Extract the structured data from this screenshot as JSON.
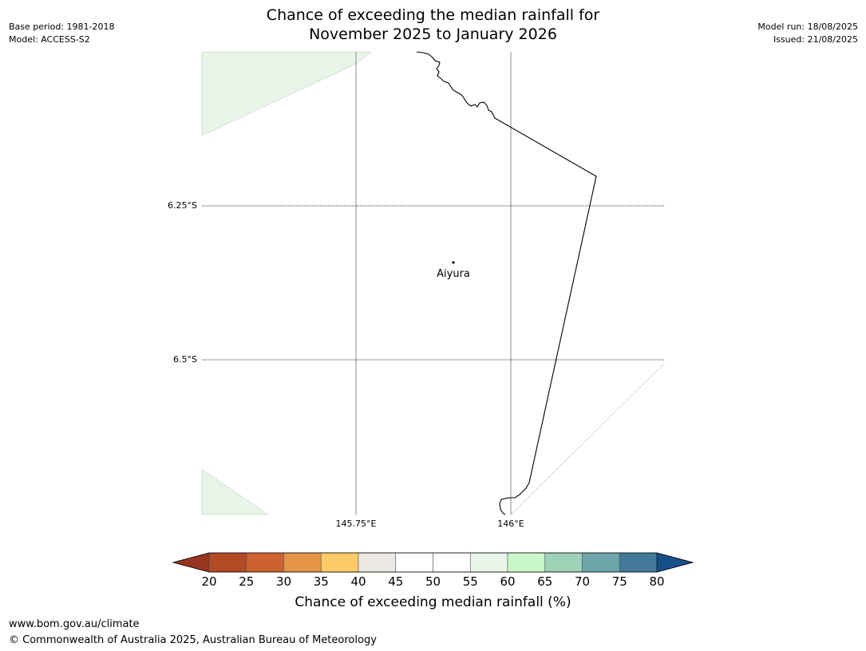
{
  "title": {
    "line1": "Chance of exceeding the median rainfall for",
    "line2": "November 2025 to January 2026"
  },
  "meta_left": {
    "base_period": "Base period: 1981-2018",
    "model": "Model: ACCESS-S2"
  },
  "meta_right": {
    "model_run": "Model run: 18/08/2025",
    "issued": "Issued: 21/08/2025"
  },
  "map": {
    "lat_labels": [
      "6.25°S",
      "6.5°S"
    ],
    "lon_labels": [
      "145.75°E",
      "146°E"
    ],
    "place": "Aiyura",
    "colors": {
      "land_fill": "#e8f4e8",
      "border": "#000000",
      "graticule": "#888888"
    }
  },
  "colorbar": {
    "ticks": [
      "20",
      "25",
      "30",
      "35",
      "40",
      "45",
      "50",
      "55",
      "60",
      "65",
      "70",
      "75",
      "80"
    ],
    "colors": [
      "#b24a25",
      "#cd6230",
      "#e49546",
      "#fdcc66",
      "#ebe8e3",
      "#ffffff",
      "#ffffff",
      "#e8f5e8",
      "#c8f7c8",
      "#9dd1b8",
      "#6da6a8",
      "#43799b"
    ],
    "under_color": "#98361f",
    "over_color": "#174f8a",
    "label": "Chance of exceeding median rainfall (%)"
  },
  "footer": {
    "url": "www.bom.gov.au/climate",
    "copyright": "© Commonwealth of Australia 2025, Australian Bureau of Meteorology"
  }
}
